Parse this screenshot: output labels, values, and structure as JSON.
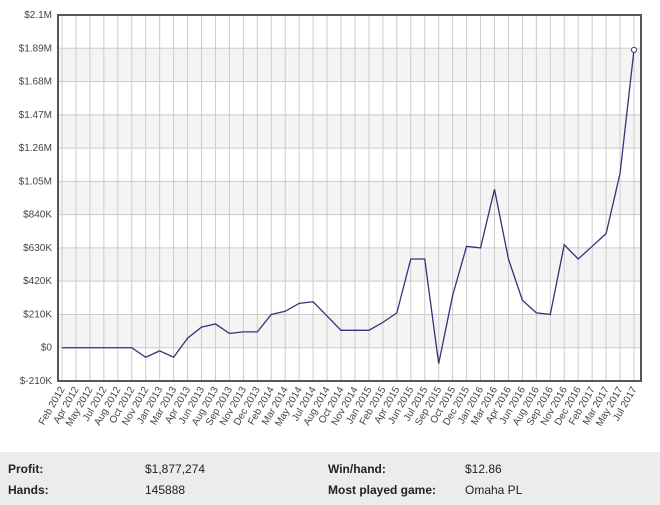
{
  "chart_data": {
    "type": "line",
    "categories": [
      "Feb 2012",
      "Apr 2012",
      "May 2012",
      "Jul 2012",
      "Aug 2012",
      "Oct 2012",
      "Nov 2012",
      "Jan 2013",
      "Mar 2013",
      "Apr 2013",
      "Jun 2013",
      "Aug 2013",
      "Sep 2013",
      "Nov 2013",
      "Dec 2013",
      "Feb 2014",
      "Mar 2014",
      "May 2014",
      "Jul 2014",
      "Aug 2014",
      "Oct 2014",
      "Nov 2014",
      "Jan 2015",
      "Feb 2015",
      "Apr 2015",
      "Jun 2015",
      "Jul 2015",
      "Sep 2015",
      "Oct 2015",
      "Dec 2015",
      "Jan 2016",
      "Mar 2016",
      "Apr 2016",
      "Jun 2016",
      "Aug 2016",
      "Sep 2016",
      "Nov 2016",
      "Dec 2016",
      "Feb 2017",
      "Mar 2017",
      "May 2017",
      "Jul 2017"
    ],
    "series": [
      {
        "color": "#33337a",
        "values": [
          0,
          0,
          0,
          0,
          0,
          0,
          -60000,
          -20000,
          -60000,
          60000,
          130000,
          150000,
          90000,
          100000,
          100000,
          210000,
          230000,
          280000,
          290000,
          200000,
          110000,
          110000,
          110000,
          160000,
          220000,
          560000,
          560000,
          -100000,
          330000,
          640000,
          630000,
          1000000,
          560000,
          300000,
          220000,
          210000,
          650000,
          560000,
          640000,
          720000,
          1100000,
          1880000
        ]
      }
    ],
    "ylim": [
      -210000,
      2100000
    ],
    "yticks": [
      {
        "value": -210000,
        "label": "$-210K"
      },
      {
        "value": 0,
        "label": "$0"
      },
      {
        "value": 210000,
        "label": "$210K"
      },
      {
        "value": 420000,
        "label": "$420K"
      },
      {
        "value": 630000,
        "label": "$630K"
      },
      {
        "value": 840000,
        "label": "$840K"
      },
      {
        "value": 1050000,
        "label": "$1.05M"
      },
      {
        "value": 1260000,
        "label": "$1.26M"
      },
      {
        "value": 1470000,
        "label": "$1.47M"
      },
      {
        "value": 1680000,
        "label": "$1.68M"
      },
      {
        "value": 1890000,
        "label": "$1.89M"
      },
      {
        "value": 2100000,
        "label": "$2.1M"
      }
    ],
    "grid": true
  },
  "stats": {
    "profit_label": "Profit:",
    "profit": "$1,877,274",
    "winhand_label": "Win/hand:",
    "winhand": "$12.86",
    "hands_label": "Hands:",
    "hands": "145888",
    "game_label": "Most played game:",
    "game": "Omaha PL"
  }
}
